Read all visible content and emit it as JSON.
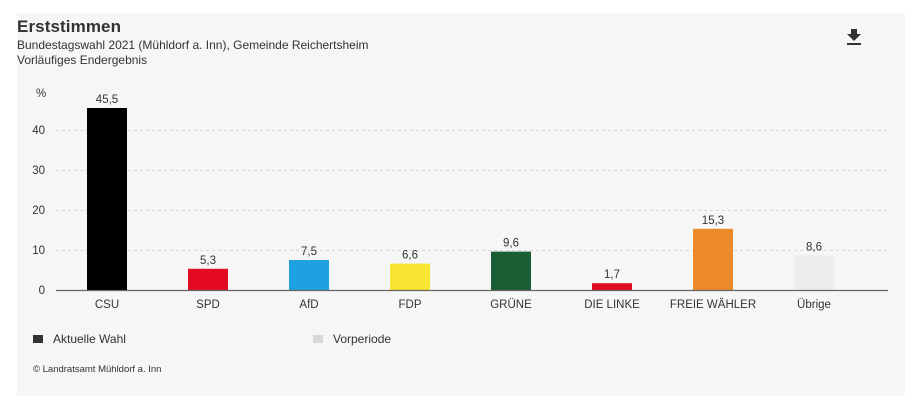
{
  "header": {
    "title": "Erststimmen",
    "subtitle": "Bundestagswahl 2021 (Mühldorf a. Inn), Gemeinde Reichertsheim",
    "status": "Vorläufiges Endergebnis",
    "download_icon": "download-icon"
  },
  "chart_data": {
    "type": "bar",
    "title": "Erststimmen",
    "xlabel": "",
    "ylabel": "%",
    "ylim": [
      0,
      45.5
    ],
    "yticks": [
      0,
      10,
      20,
      30,
      40
    ],
    "ytick_labels": [
      "0",
      "10",
      "20",
      "30",
      "40"
    ],
    "grid": true,
    "categories": [
      "CSU",
      "SPD",
      "AfD",
      "FDP",
      "GRÜNE",
      "DIE LINKE",
      "FREIE WÄHLER",
      "Übrige"
    ],
    "values": [
      45.5,
      5.3,
      7.5,
      6.6,
      9.6,
      1.7,
      15.3,
      8.6
    ],
    "value_labels": [
      "45,5",
      "5,3",
      "7,5",
      "6,6",
      "9,6",
      "1,7",
      "15,3",
      "8,6"
    ],
    "colors": [
      "#000000",
      "#e30a21",
      "#1ea1e1",
      "#f7e532",
      "#1b5e35",
      "#df0a1f",
      "#ec8a2a",
      "#ededed"
    ],
    "legend": [
      {
        "label": "Aktuelle Wahl",
        "color": "#333333"
      },
      {
        "label": "Vorperiode",
        "color": "#d9d9d9"
      }
    ],
    "legend_position": "bottom-left"
  },
  "footer": {
    "copyright": "© Landratsamt Mühldorf a. Inn"
  }
}
